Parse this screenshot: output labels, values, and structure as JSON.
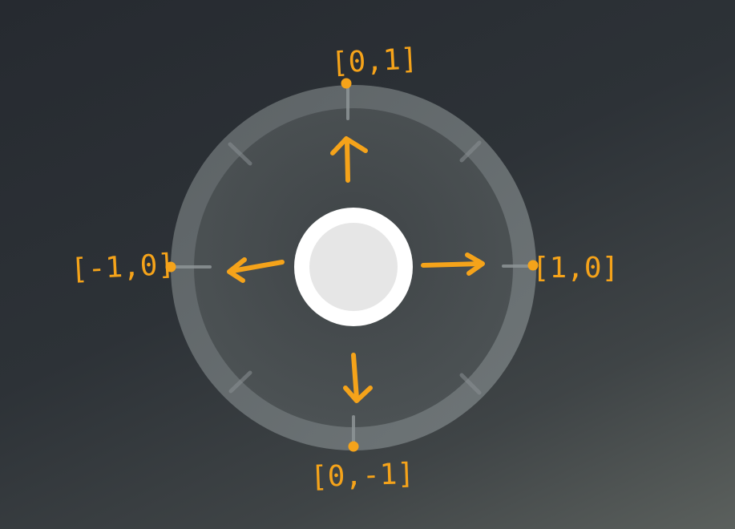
{
  "diagram": {
    "labels": {
      "up": "[0,1]",
      "down": "[0,-1]",
      "left": "[-1,0]",
      "right": "[1,0]"
    },
    "colors": {
      "accent": "#f5a31a",
      "ring": "#8d9395",
      "knob_outer": "#ffffff",
      "knob_inner": "#e6e6e6"
    }
  }
}
